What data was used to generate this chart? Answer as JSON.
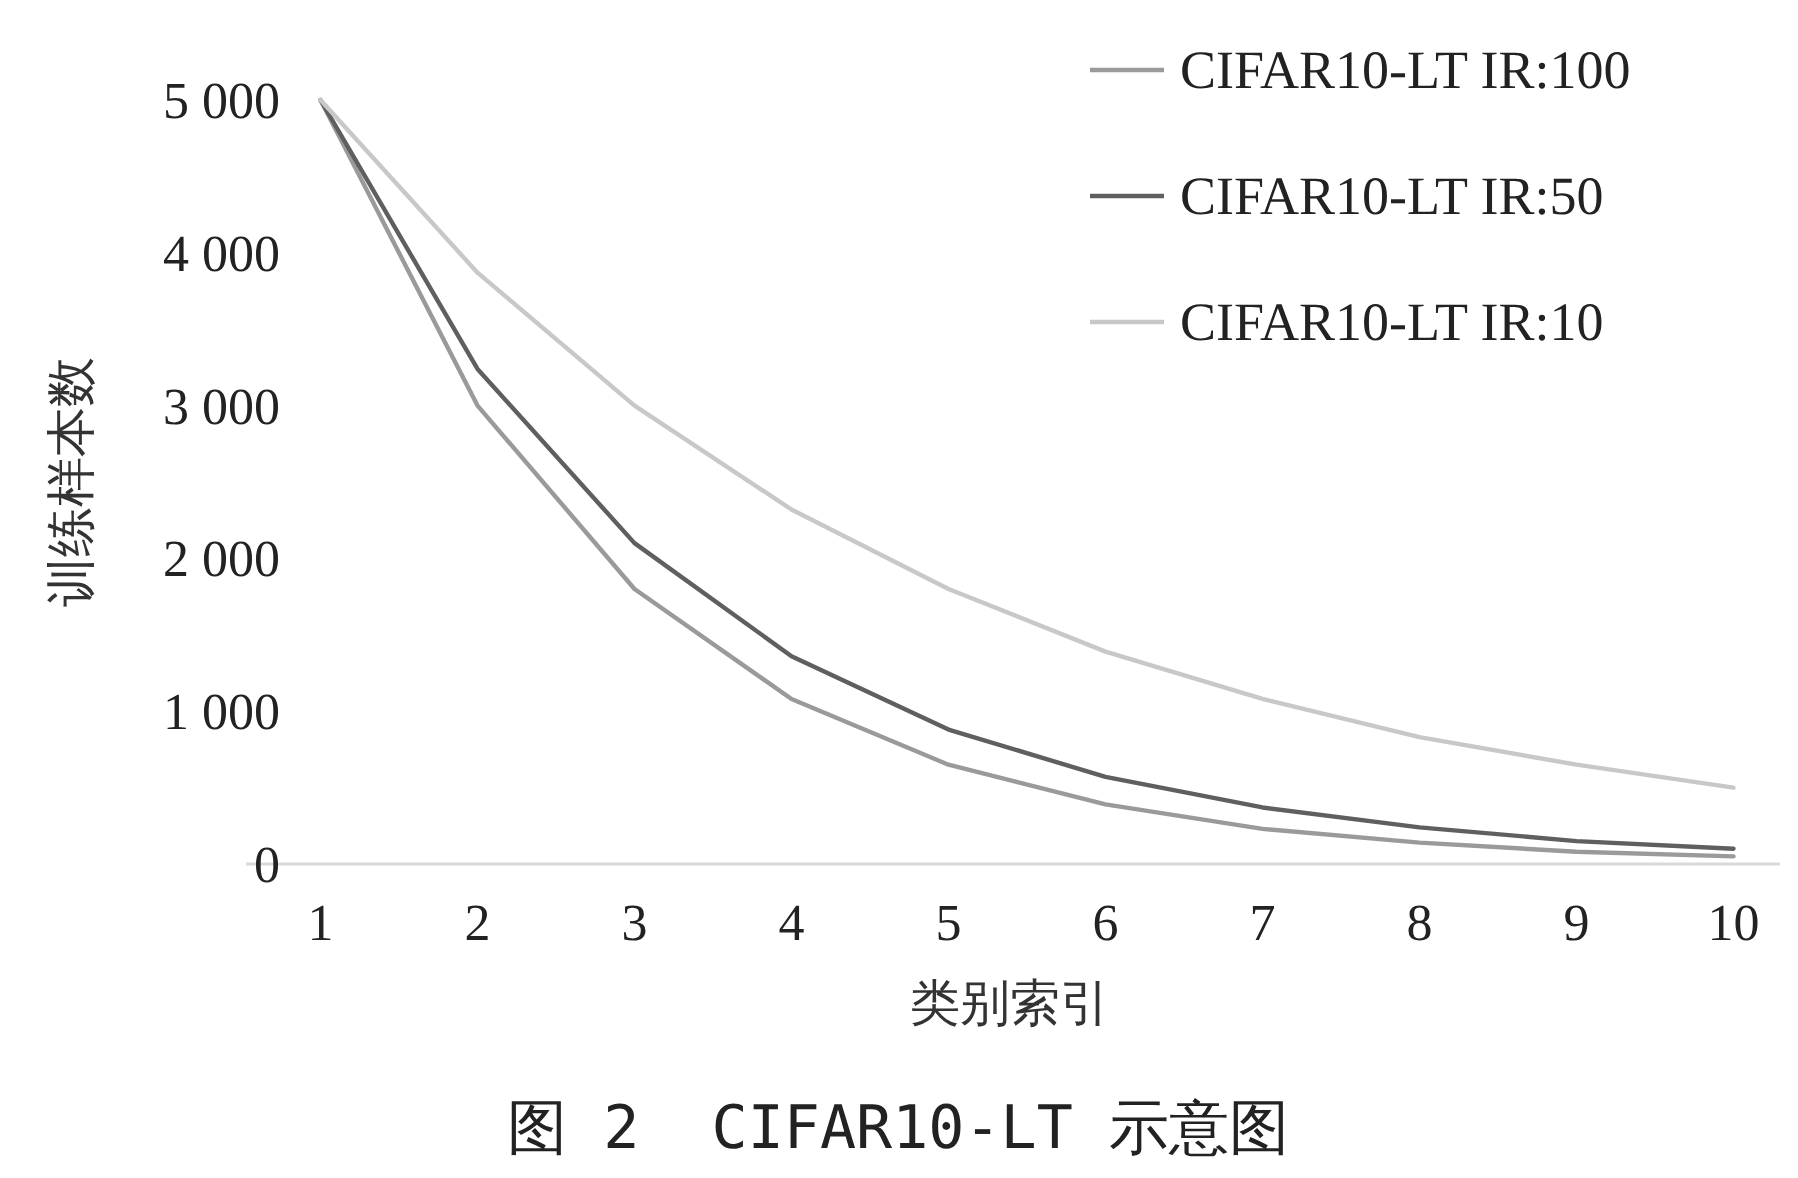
{
  "chart_data": {
    "type": "line",
    "title": "图 2  CIFAR10-LT 示意图",
    "xlabel": "类别索引",
    "ylabel": "训练样本数",
    "categories": [
      "1",
      "2",
      "3",
      "4",
      "5",
      "6",
      "7",
      "8",
      "9",
      "10"
    ],
    "series": [
      {
        "name": "CIFAR10-LT IR:100",
        "color": "#9a9a9a",
        "values": [
          5000,
          3000,
          1800,
          1080,
          650,
          390,
          230,
          140,
          80,
          50
        ]
      },
      {
        "name": "CIFAR10-LT IR:50",
        "color": "#5f5f5f",
        "values": [
          5000,
          3240,
          2100,
          1360,
          880,
          570,
          370,
          240,
          150,
          100
        ]
      },
      {
        "name": "CIFAR10-LT IR:10",
        "color": "#c8c8c8",
        "values": [
          5000,
          3870,
          3000,
          2320,
          1800,
          1390,
          1080,
          830,
          650,
          500
        ]
      }
    ],
    "ylim": [
      0,
      5000
    ],
    "yticks": [
      {
        "value": 0,
        "label": "0"
      },
      {
        "value": 1000,
        "label": "1 000"
      },
      {
        "value": 2000,
        "label": "2 000"
      },
      {
        "value": 3000,
        "label": "3 000"
      },
      {
        "value": 4000,
        "label": "4 000"
      },
      {
        "value": 5000,
        "label": "5 000"
      }
    ],
    "legend": "top right",
    "marker": "none",
    "line_style": "solid",
    "grid": false
  }
}
